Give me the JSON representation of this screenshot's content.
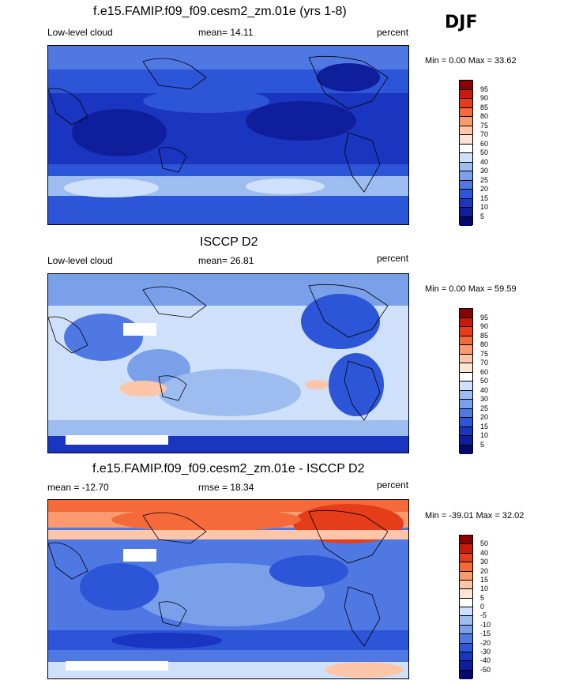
{
  "season": "DJF",
  "panels": [
    {
      "title": "f.e15.FAMIP.f09_f09.cesm2_zm.01e (yrs 1-8)",
      "left_label": "Low-level cloud",
      "center_label": "mean=  14.11",
      "right_label": "percent",
      "minmax": "Min =   0.00 Max =  33.62",
      "colorbar_labels": [
        "95",
        "90",
        "85",
        "80",
        "75",
        "70",
        "60",
        "50",
        "40",
        "30",
        "25",
        "20",
        "15",
        "10",
        "5"
      ],
      "colorbar_colors": [
        "#8b0000",
        "#c71a0b",
        "#e53d1a",
        "#f56a3a",
        "#fb9a6e",
        "#fdc6a8",
        "#fbe4d4",
        "#ffffff",
        "#cfe0fa",
        "#9dbdf0",
        "#7aa0ea",
        "#5078e3",
        "#2c55d8",
        "#1a35c0",
        "#0f1e9a",
        "#030a6a"
      ]
    },
    {
      "title": "ISCCP D2",
      "left_label": "Low-level cloud",
      "center_label": "mean=  26.81",
      "right_label": "percent",
      "minmax": "Min =   0.00 Max =  59.59",
      "colorbar_labels": [
        "95",
        "90",
        "85",
        "80",
        "75",
        "70",
        "60",
        "50",
        "40",
        "30",
        "25",
        "20",
        "15",
        "10",
        "5"
      ],
      "colorbar_colors": [
        "#8b0000",
        "#c71a0b",
        "#e53d1a",
        "#f56a3a",
        "#fb9a6e",
        "#fdc6a8",
        "#fbe4d4",
        "#ffffff",
        "#cfe0fa",
        "#9dbdf0",
        "#7aa0ea",
        "#5078e3",
        "#2c55d8",
        "#1a35c0",
        "#0f1e9a",
        "#030a6a"
      ]
    },
    {
      "title": "f.e15.FAMIP.f09_f09.cesm2_zm.01e - ISCCP D2",
      "left_label": "mean = -12.70",
      "center_label": "rmse =  18.34",
      "right_label": "percent",
      "minmax": "Min = -39.01 Max =  32.02",
      "colorbar_labels": [
        "50",
        "40",
        "30",
        "20",
        "15",
        "10",
        "5",
        "0",
        "-5",
        "-10",
        "-15",
        "-20",
        "-30",
        "-40",
        "-50"
      ],
      "colorbar_colors": [
        "#8b0000",
        "#c71a0b",
        "#e53d1a",
        "#f56a3a",
        "#fb9a6e",
        "#fdc6a8",
        "#fbe4d4",
        "#ffffff",
        "#cfe0fa",
        "#9dbdf0",
        "#7aa0ea",
        "#5078e3",
        "#2c55d8",
        "#1a35c0",
        "#0f1e9a",
        "#030a6a"
      ]
    }
  ],
  "chart_data": [
    {
      "type": "heatmap",
      "title": "f.e15.FAMIP.f09_f09.cesm2_zm.01e (yrs 1-8)",
      "variable": "Low-level cloud",
      "units": "percent",
      "mean": 14.11,
      "min": 0.0,
      "max": 33.62,
      "contour_levels": [
        5,
        10,
        15,
        20,
        25,
        30,
        40,
        50,
        60,
        70,
        75,
        80,
        85,
        90,
        95
      ],
      "grid": "global map"
    },
    {
      "type": "heatmap",
      "title": "ISCCP D2",
      "variable": "Low-level cloud",
      "units": "percent",
      "mean": 26.81,
      "min": 0.0,
      "max": 59.59,
      "contour_levels": [
        5,
        10,
        15,
        20,
        25,
        30,
        40,
        50,
        60,
        70,
        75,
        80,
        85,
        90,
        95
      ],
      "grid": "global map"
    },
    {
      "type": "heatmap",
      "title": "f.e15.FAMIP.f09_f09.cesm2_zm.01e - ISCCP D2",
      "units": "percent",
      "mean": -12.7,
      "rmse": 18.34,
      "min": -39.01,
      "max": 32.02,
      "contour_levels": [
        -50,
        -40,
        -30,
        -20,
        -15,
        -10,
        -5,
        0,
        5,
        10,
        15,
        20,
        30,
        40,
        50
      ],
      "grid": "global map"
    }
  ]
}
